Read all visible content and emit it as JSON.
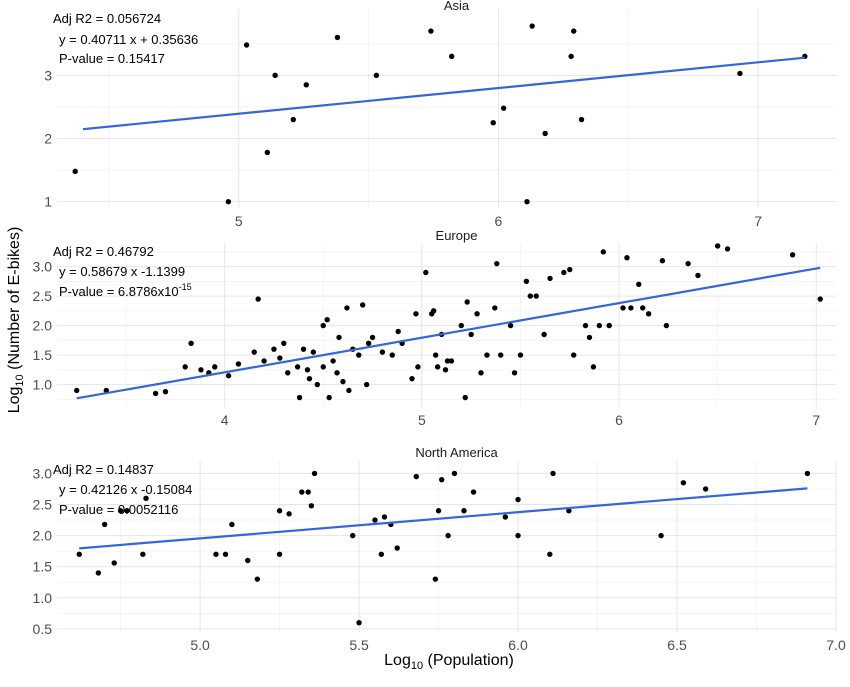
{
  "chart_data": {
    "type": "scatter",
    "xlabel_base": "Log",
    "xlabel_sub": "10",
    "xlabel_rest": " (Population)",
    "ylabel_base": "Log",
    "ylabel_sub": "10",
    "ylabel_rest": " (Number of E-bikes)",
    "grid": true,
    "point_color": "#000000",
    "line_color": "#3366dd",
    "panels": [
      {
        "title": "Asia",
        "xlim": [
          4.3,
          7.3
        ],
        "ylim": [
          0.9,
          4.05
        ],
        "xticks": [
          5,
          6,
          7
        ],
        "xtick_labels": [
          "5",
          "6",
          "7"
        ],
        "yticks": [
          1,
          2,
          3
        ],
        "ytick_labels": [
          "1",
          "2",
          "3"
        ],
        "annot": {
          "r2": "Adj R2 =  0.056724",
          "eq": "y =  0.40711 x + 0.35636",
          "p_main": "P-value = 0.15417",
          "p_sup": ""
        },
        "fit": {
          "slope": 0.40711,
          "intercept": 0.35636,
          "x_range": [
            4.4,
            7.18
          ]
        },
        "points": [
          [
            4.37,
            1.48
          ],
          [
            4.96,
            1.0
          ],
          [
            5.03,
            3.48
          ],
          [
            5.14,
            3.0
          ],
          [
            5.11,
            1.78
          ],
          [
            5.21,
            2.3
          ],
          [
            5.26,
            2.85
          ],
          [
            5.38,
            3.6
          ],
          [
            5.53,
            3.0
          ],
          [
            5.74,
            3.7
          ],
          [
            5.82,
            3.3
          ],
          [
            5.98,
            2.25
          ],
          [
            6.02,
            2.48
          ],
          [
            6.11,
            1.0
          ],
          [
            6.13,
            3.78
          ],
          [
            6.18,
            2.08
          ],
          [
            6.28,
            3.3
          ],
          [
            6.29,
            3.7
          ],
          [
            6.32,
            2.3
          ],
          [
            6.93,
            3.03
          ],
          [
            7.18,
            3.3
          ]
        ]
      },
      {
        "title": "Europe",
        "xlim": [
          3.15,
          7.1
        ],
        "ylim": [
          0.62,
          3.4
        ],
        "xticks": [
          4,
          5,
          6,
          7
        ],
        "xtick_labels": [
          "4",
          "5",
          "6",
          "7"
        ],
        "yticks": [
          1.0,
          1.5,
          2.0,
          2.5,
          3.0
        ],
        "ytick_labels": [
          "1.0",
          "1.5",
          "2.0",
          "2.5",
          "3.0"
        ],
        "annot": {
          "r2": "Adj R2 =  0.46792",
          "eq": "y =  0.58679 x -1.1399",
          "p_main": "P-value = 6.8786x10",
          "p_sup": "-15"
        },
        "fit": {
          "slope": 0.58679,
          "intercept": -1.1399,
          "x_range": [
            3.25,
            7.02
          ]
        },
        "points": [
          [
            3.25,
            0.9
          ],
          [
            3.4,
            0.9
          ],
          [
            3.65,
            0.85
          ],
          [
            3.7,
            0.88
          ],
          [
            3.8,
            1.3
          ],
          [
            3.83,
            1.7
          ],
          [
            3.88,
            1.25
          ],
          [
            3.92,
            1.2
          ],
          [
            3.95,
            1.3
          ],
          [
            4.02,
            1.15
          ],
          [
            4.07,
            1.35
          ],
          [
            4.15,
            1.55
          ],
          [
            4.17,
            2.45
          ],
          [
            4.2,
            1.4
          ],
          [
            4.25,
            1.6
          ],
          [
            4.28,
            1.45
          ],
          [
            4.3,
            1.7
          ],
          [
            4.32,
            1.2
          ],
          [
            4.37,
            1.3
          ],
          [
            4.38,
            0.78
          ],
          [
            4.4,
            1.6
          ],
          [
            4.42,
            1.25
          ],
          [
            4.43,
            1.1
          ],
          [
            4.45,
            1.55
          ],
          [
            4.47,
            1.0
          ],
          [
            4.5,
            1.3
          ],
          [
            4.5,
            2.0
          ],
          [
            4.52,
            2.1
          ],
          [
            4.53,
            0.78
          ],
          [
            4.55,
            1.4
          ],
          [
            4.57,
            1.2
          ],
          [
            4.58,
            1.8
          ],
          [
            4.6,
            1.05
          ],
          [
            4.62,
            2.3
          ],
          [
            4.63,
            0.9
          ],
          [
            4.65,
            1.6
          ],
          [
            4.68,
            1.5
          ],
          [
            4.7,
            2.35
          ],
          [
            4.72,
            1.0
          ],
          [
            4.73,
            1.7
          ],
          [
            4.75,
            1.8
          ],
          [
            4.8,
            1.55
          ],
          [
            4.85,
            1.5
          ],
          [
            4.88,
            1.9
          ],
          [
            4.9,
            1.7
          ],
          [
            4.95,
            1.1
          ],
          [
            4.97,
            2.2
          ],
          [
            4.98,
            1.3
          ],
          [
            5.02,
            2.9
          ],
          [
            5.05,
            2.2
          ],
          [
            5.06,
            2.25
          ],
          [
            5.07,
            1.5
          ],
          [
            5.08,
            1.3
          ],
          [
            5.1,
            1.85
          ],
          [
            5.12,
            1.25
          ],
          [
            5.13,
            1.4
          ],
          [
            5.15,
            1.4
          ],
          [
            5.2,
            2.0
          ],
          [
            5.22,
            0.78
          ],
          [
            5.23,
            2.4
          ],
          [
            5.25,
            1.85
          ],
          [
            5.28,
            2.2
          ],
          [
            5.3,
            1.2
          ],
          [
            5.33,
            1.5
          ],
          [
            5.37,
            2.3
          ],
          [
            5.38,
            3.05
          ],
          [
            5.4,
            1.5
          ],
          [
            5.45,
            2.0
          ],
          [
            5.47,
            1.2
          ],
          [
            5.5,
            1.5
          ],
          [
            5.53,
            2.75
          ],
          [
            5.55,
            2.5
          ],
          [
            5.58,
            2.5
          ],
          [
            5.62,
            1.85
          ],
          [
            5.65,
            2.8
          ],
          [
            5.72,
            2.9
          ],
          [
            5.75,
            2.95
          ],
          [
            5.77,
            1.5
          ],
          [
            5.83,
            2.0
          ],
          [
            5.85,
            1.8
          ],
          [
            5.87,
            1.3
          ],
          [
            5.9,
            2.0
          ],
          [
            5.92,
            3.25
          ],
          [
            5.95,
            2.0
          ],
          [
            6.02,
            2.3
          ],
          [
            6.04,
            3.15
          ],
          [
            6.06,
            2.3
          ],
          [
            6.1,
            2.7
          ],
          [
            6.12,
            2.3
          ],
          [
            6.15,
            2.2
          ],
          [
            6.22,
            3.1
          ],
          [
            6.24,
            2.0
          ],
          [
            6.35,
            3.05
          ],
          [
            6.4,
            2.85
          ],
          [
            6.5,
            3.35
          ],
          [
            6.55,
            3.3
          ],
          [
            6.88,
            3.2
          ],
          [
            7.02,
            2.45
          ]
        ]
      },
      {
        "title": "North America",
        "xlim": [
          4.55,
          7.0
        ],
        "ylim": [
          0.45,
          3.2
        ],
        "xticks": [
          5.0,
          5.5,
          6.0,
          6.5,
          7.0
        ],
        "xtick_labels": [
          "5.0",
          "5.5",
          "6.0",
          "6.5",
          "7.0"
        ],
        "yticks": [
          0.5,
          1.0,
          1.5,
          2.0,
          2.5,
          3.0
        ],
        "ytick_labels": [
          "0.5",
          "1.0",
          "1.5",
          "2.0",
          "2.5",
          "3.0"
        ],
        "annot": {
          "r2": "Adj R2 =  0.14837",
          "eq": "y =  0.42126 x -0.15084",
          "p_main": "P-value = 0.0052116",
          "p_sup": ""
        },
        "fit": {
          "slope": 0.42126,
          "intercept": -0.15084,
          "x_range": [
            4.62,
            6.91
          ]
        },
        "points": [
          [
            4.62,
            1.7
          ],
          [
            4.68,
            1.4
          ],
          [
            4.7,
            2.18
          ],
          [
            4.73,
            1.56
          ],
          [
            4.75,
            2.4
          ],
          [
            4.77,
            2.4
          ],
          [
            4.82,
            1.7
          ],
          [
            4.83,
            2.6
          ],
          [
            5.05,
            1.7
          ],
          [
            5.08,
            1.7
          ],
          [
            5.1,
            2.18
          ],
          [
            5.15,
            1.6
          ],
          [
            5.18,
            1.3
          ],
          [
            5.25,
            2.4
          ],
          [
            5.25,
            1.7
          ],
          [
            5.28,
            2.35
          ],
          [
            5.32,
            2.7
          ],
          [
            5.34,
            2.7
          ],
          [
            5.35,
            2.48
          ],
          [
            5.36,
            3.0
          ],
          [
            5.48,
            2.0
          ],
          [
            5.5,
            0.6
          ],
          [
            5.55,
            2.25
          ],
          [
            5.57,
            1.7
          ],
          [
            5.58,
            2.3
          ],
          [
            5.6,
            2.18
          ],
          [
            5.62,
            1.8
          ],
          [
            5.68,
            2.95
          ],
          [
            5.74,
            1.3
          ],
          [
            5.75,
            2.4
          ],
          [
            5.76,
            2.9
          ],
          [
            5.78,
            2.0
          ],
          [
            5.8,
            3.0
          ],
          [
            5.83,
            2.4
          ],
          [
            5.86,
            2.7
          ],
          [
            5.96,
            2.3
          ],
          [
            6.0,
            2.58
          ],
          [
            6.0,
            2.0
          ],
          [
            6.1,
            1.7
          ],
          [
            6.11,
            3.0
          ],
          [
            6.16,
            2.4
          ],
          [
            6.45,
            2.0
          ],
          [
            6.52,
            2.85
          ],
          [
            6.59,
            2.75
          ],
          [
            6.91,
            3.0
          ]
        ]
      }
    ]
  }
}
